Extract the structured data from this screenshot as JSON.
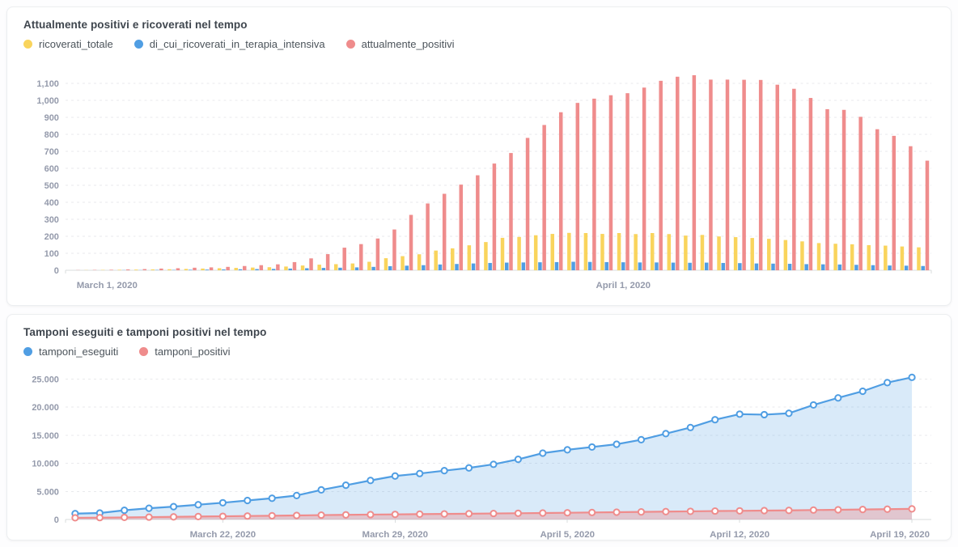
{
  "cards": [
    {
      "title": "Attualmente positivi e ricoverati nel tempo",
      "legend": [
        {
          "label": "ricoverati_totale",
          "color": "#F9D45C"
        },
        {
          "label": "di_cui_ricoverati_in_terapia_intensiva",
          "color": "#509EE3"
        },
        {
          "label": "attualmente_positivi",
          "color": "#EF8C8C"
        }
      ]
    },
    {
      "title": "Tamponi eseguiti e tamponi positivi nel tempo",
      "legend": [
        {
          "label": "tamponi_eseguiti",
          "color": "#509EE3"
        },
        {
          "label": "tamponi_positivi",
          "color": "#EF8C8C"
        }
      ]
    }
  ],
  "colors": {
    "yellow": "#F9D45C",
    "blue": "#509EE3",
    "red": "#EF8C8C",
    "blue_fill": "rgba(80,158,227,0.22)",
    "red_fill": "rgba(239,140,140,0.38)",
    "grid": "#e9eaec",
    "axis": "#d9dcde",
    "tick_text": "#949aab"
  },
  "chart_data": [
    {
      "type": "bar",
      "title": "Attualmente positivi e ricoverati nel tempo",
      "x": [
        "2020-02-28",
        "2020-02-29",
        "2020-03-01",
        "2020-03-02",
        "2020-03-03",
        "2020-03-04",
        "2020-03-05",
        "2020-03-06",
        "2020-03-07",
        "2020-03-08",
        "2020-03-09",
        "2020-03-10",
        "2020-03-11",
        "2020-03-12",
        "2020-03-13",
        "2020-03-14",
        "2020-03-15",
        "2020-03-16",
        "2020-03-17",
        "2020-03-18",
        "2020-03-19",
        "2020-03-20",
        "2020-03-21",
        "2020-03-22",
        "2020-03-23",
        "2020-03-24",
        "2020-03-25",
        "2020-03-26",
        "2020-03-27",
        "2020-03-28",
        "2020-03-29",
        "2020-03-30",
        "2020-03-31",
        "2020-04-01",
        "2020-04-02",
        "2020-04-03",
        "2020-04-04",
        "2020-04-05",
        "2020-04-06",
        "2020-04-07",
        "2020-04-08",
        "2020-04-09",
        "2020-04-10",
        "2020-04-11",
        "2020-04-12",
        "2020-04-13",
        "2020-04-14",
        "2020-04-15",
        "2020-04-16",
        "2020-04-17",
        "2020-04-18",
        "2020-04-19"
      ],
      "series": [
        {
          "name": "ricoverati_totale",
          "color": "#F9D45C",
          "values": [
            0,
            1,
            2,
            3,
            4,
            5,
            6,
            8,
            10,
            12,
            14,
            16,
            18,
            22,
            28,
            33,
            36,
            40,
            50,
            71,
            83,
            94,
            116,
            129,
            147,
            166,
            191,
            196,
            206,
            214,
            220,
            219,
            214,
            219,
            213,
            219,
            213,
            204,
            208,
            199,
            195,
            190,
            185,
            178,
            170,
            160,
            156,
            153,
            148,
            145,
            140,
            135
          ]
        },
        {
          "name": "di_cui_ricoverati_in_terapia_intensiva",
          "color": "#509EE3",
          "values": [
            0,
            0,
            0,
            1,
            1,
            2,
            2,
            3,
            4,
            5,
            6,
            7,
            8,
            10,
            12,
            14,
            15,
            17,
            20,
            24,
            27,
            30,
            34,
            37,
            40,
            43,
            45,
            46,
            47,
            48,
            50,
            49,
            48,
            47,
            46,
            46,
            45,
            44,
            45,
            43,
            42,
            40,
            39,
            38,
            36,
            35,
            34,
            32,
            30,
            28,
            27,
            25
          ]
        },
        {
          "name": "attualmente_positivi",
          "color": "#EF8C8C",
          "values": [
            1,
            2,
            3,
            5,
            7,
            10,
            12,
            15,
            17,
            20,
            25,
            30,
            35,
            48,
            70,
            95,
            133,
            154,
            187,
            240,
            326,
            393,
            450,
            504,
            559,
            628,
            690,
            779,
            855,
            930,
            985,
            1010,
            1030,
            1042,
            1075,
            1115,
            1139,
            1148,
            1122,
            1122,
            1121,
            1120,
            1092,
            1068,
            1014,
            948,
            944,
            903,
            830,
            791,
            730,
            645
          ]
        }
      ],
      "ylim": [
        0,
        1200
      ],
      "ytick_step": 100,
      "ytick_max": 1100,
      "ytick_format": "comma",
      "xticks": [
        {
          "index": 2,
          "label": "March 1, 2020"
        },
        {
          "index": 33,
          "label": "April 1, 2020"
        }
      ],
      "grid": "dashed",
      "legend_position": "top"
    },
    {
      "type": "area",
      "title": "Tamponi eseguiti e tamponi positivi nel tempo",
      "x": [
        "2020-03-16",
        "2020-03-17",
        "2020-03-18",
        "2020-03-19",
        "2020-03-20",
        "2020-03-21",
        "2020-03-22",
        "2020-03-23",
        "2020-03-24",
        "2020-03-25",
        "2020-03-26",
        "2020-03-27",
        "2020-03-28",
        "2020-03-29",
        "2020-03-30",
        "2020-03-31",
        "2020-04-01",
        "2020-04-02",
        "2020-04-03",
        "2020-04-04",
        "2020-04-05",
        "2020-04-06",
        "2020-04-07",
        "2020-04-08",
        "2020-04-09",
        "2020-04-10",
        "2020-04-11",
        "2020-04-12",
        "2020-04-13",
        "2020-04-14",
        "2020-04-15",
        "2020-04-16",
        "2020-04-17",
        "2020-04-18",
        "2020-04-19"
      ],
      "series": [
        {
          "name": "tamponi_eseguiti",
          "color": "#509EE3",
          "values": [
            1048,
            1148,
            1640,
            2000,
            2290,
            2630,
            2980,
            3380,
            3780,
            4270,
            5270,
            6100,
            6950,
            7740,
            8180,
            8690,
            9180,
            9820,
            10710,
            11810,
            12400,
            12900,
            13390,
            14200,
            15280,
            16370,
            17760,
            18750,
            18660,
            18900,
            20390,
            21640,
            22830,
            24360,
            25300
          ]
        },
        {
          "name": "tamponi_positivi",
          "color": "#EF8C8C",
          "values": [
            300,
            330,
            370,
            420,
            470,
            520,
            570,
            620,
            670,
            720,
            780,
            830,
            870,
            910,
            950,
            990,
            1030,
            1070,
            1110,
            1150,
            1200,
            1250,
            1300,
            1350,
            1400,
            1450,
            1500,
            1540,
            1580,
            1620,
            1680,
            1730,
            1780,
            1840,
            1890
          ]
        }
      ],
      "ylim": [
        0,
        26500
      ],
      "ytick_step": 5000,
      "ytick_max": 25000,
      "ytick_format": "dot",
      "xticks": [
        {
          "index": 6,
          "label": "March 22, 2020"
        },
        {
          "index": 13,
          "label": "March 29, 2020"
        },
        {
          "index": 20,
          "label": "April 5, 2020"
        },
        {
          "index": 27,
          "label": "April 12, 2020"
        },
        {
          "index": 34,
          "label": "April 19, 2020"
        }
      ],
      "grid": "dashed",
      "legend_position": "top"
    }
  ]
}
